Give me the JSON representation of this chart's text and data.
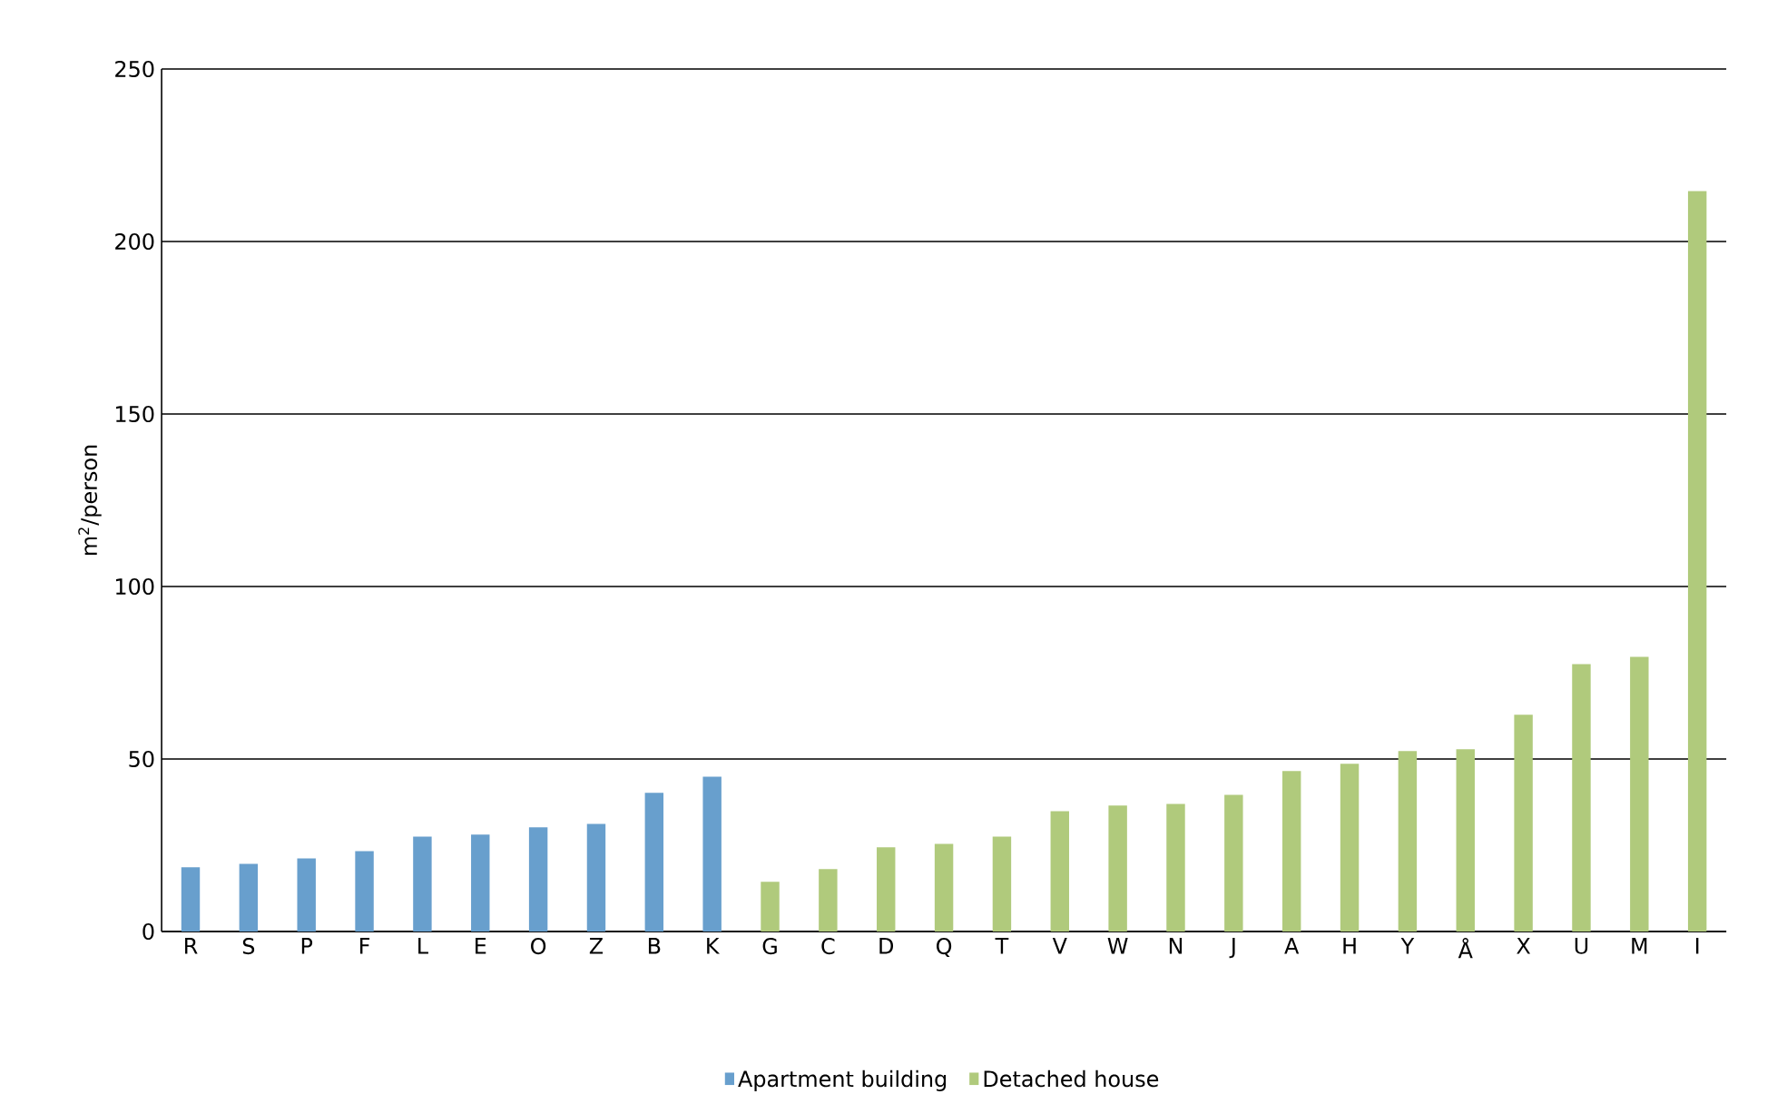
{
  "chart_data": {
    "type": "bar",
    "ylabel": "m$^{2}$/person",
    "categories": [
      "R",
      "S",
      "P",
      "F",
      "L",
      "E",
      "O",
      "Z",
      "B",
      "K",
      "G",
      "C",
      "D",
      "Q",
      "T",
      "V",
      "W",
      "N",
      "J",
      "A",
      "H",
      "Y",
      "Å",
      "X",
      "U",
      "M",
      "I"
    ],
    "series": [
      {
        "name": "Apartment building",
        "color": "#689fcd",
        "values": [
          18.6,
          19.6,
          21.2,
          23.3,
          27.5,
          28.1,
          30.2,
          31.2,
          40.2,
          44.9,
          null,
          null,
          null,
          null,
          null,
          null,
          null,
          null,
          null,
          null,
          null,
          null,
          null,
          null,
          null,
          null,
          null
        ]
      },
      {
        "name": "Detached house",
        "color": "#b0ca7c",
        "values": [
          null,
          null,
          null,
          null,
          null,
          null,
          null,
          null,
          null,
          null,
          14.4,
          18.1,
          24.4,
          25.4,
          27.5,
          34.9,
          36.5,
          37.0,
          39.6,
          46.5,
          48.6,
          52.3,
          52.8,
          62.8,
          77.5,
          79.6,
          214.6
        ]
      }
    ],
    "ylim": [
      0,
      250
    ],
    "yticks": [
      0,
      50,
      100,
      150,
      200,
      250
    ],
    "grid": "y",
    "legend": "bottom"
  }
}
